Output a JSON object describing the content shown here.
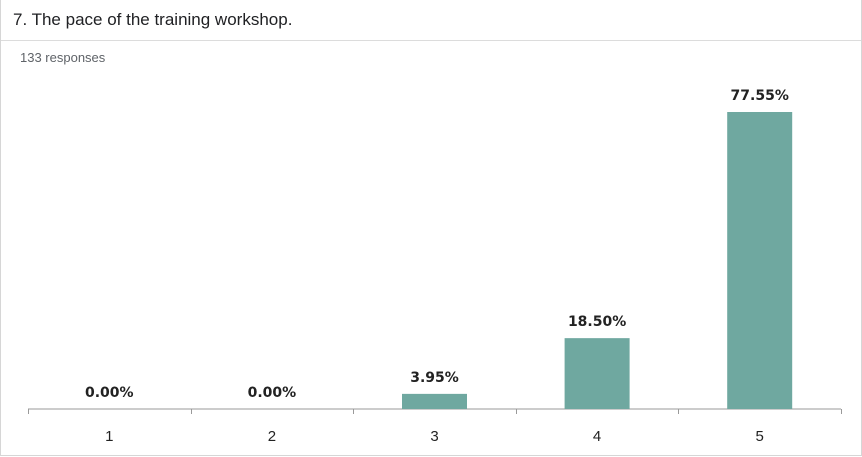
{
  "question": {
    "title": "7. The pace of the training workshop.",
    "responses": "133 responses"
  },
  "colors": {
    "bar": "#6fa8a0",
    "axis": "#9a9a9a",
    "text": "#222222"
  },
  "chart_data": {
    "type": "bar",
    "title": "7. The pace of the training workshop.",
    "subtitle": "133 responses",
    "categories": [
      "1",
      "2",
      "3",
      "4",
      "5"
    ],
    "values": [
      0.0,
      0.0,
      3.95,
      18.5,
      77.55
    ],
    "data_labels": [
      "0.00%",
      "0.00%",
      "3.95%",
      "18.50%",
      "77.55%"
    ],
    "xlabel": "",
    "ylabel": "",
    "ylim": [
      0,
      77.55
    ],
    "grid": false,
    "legend": "none"
  }
}
